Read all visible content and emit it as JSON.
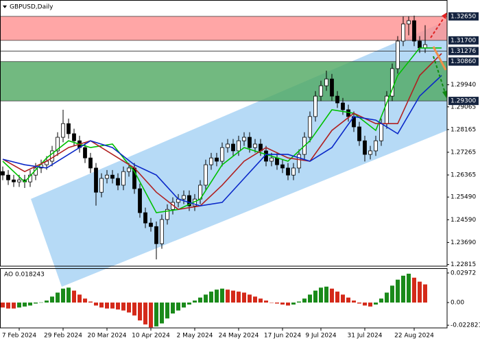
{
  "chart_data": [
    {
      "type": "candlestick",
      "title": "GBPUSD,Daily",
      "xlim": [
        -0.5,
        81
      ],
      "xticks": [
        {
          "value": 3,
          "label": "7 Feb 2024"
        },
        {
          "value": 11,
          "label": "29 Feb 2024"
        },
        {
          "value": 19,
          "label": "20 Mar 2024"
        },
        {
          "value": 27,
          "label": "10 Apr 2024"
        },
        {
          "value": 35,
          "label": "2 May 2024"
        },
        {
          "value": 43,
          "label": "24 May 2024"
        },
        {
          "value": 51,
          "label": "17 Jun 2024"
        },
        {
          "value": 58,
          "label": "9 Jul 2024"
        },
        {
          "value": 66,
          "label": "31 Jul 2024"
        },
        {
          "value": 75,
          "label": "22 Aug 2024"
        }
      ],
      "ylim": [
        1.2275,
        1.333
      ],
      "yticks": [
        {
          "value": 1.2994,
          "label": "1.29940"
        },
        1.29065,
        1.28165,
        1.27265,
        1.26365,
        {
          "value": 1.2549,
          "label": "1.25490"
        },
        {
          "value": 1.2459,
          "label": "1.24590"
        },
        {
          "value": 1.2369,
          "label": "1.23690"
        },
        1.22815
      ],
      "levels": [
        {
          "value": 1.3265,
          "label": "1.32650"
        },
        {
          "value": 1.317,
          "label": "1.31700"
        },
        1.31276,
        {
          "value": 1.3086,
          "label": "1.30860"
        },
        {
          "value": 1.293,
          "label": "1.29300"
        }
      ],
      "zones": [
        {
          "top": 1.3265,
          "bottom": 1.317,
          "color": "#ff9090"
        },
        {
          "top": 1.3086,
          "bottom": 1.293,
          "color": "#4fa860"
        }
      ],
      "up_color": "#ffffff",
      "down_color": "#000000",
      "open": [
        1.265,
        1.2636,
        1.2617,
        1.2609,
        1.2617,
        1.2609,
        1.2636,
        1.2664,
        1.2677,
        1.2691,
        1.2732,
        1.2786,
        1.284,
        1.28,
        1.2772,
        1.2745,
        1.2704,
        1.2664,
        1.2568,
        1.2623,
        1.2636,
        1.2623,
        1.2596,
        1.265,
        1.2664,
        1.2582,
        1.2487,
        1.2446,
        1.2432,
        1.2364,
        1.246,
        1.25,
        1.2528,
        1.2541,
        1.2555,
        1.2514,
        1.2541,
        1.2596,
        1.2677,
        1.2704,
        1.2691,
        1.2745,
        1.2759,
        1.2732,
        1.2772,
        1.2786,
        1.2745,
        1.2759,
        1.2732,
        1.2691,
        1.2704,
        1.2677,
        1.2664,
        1.2636,
        1.2664,
        1.2718,
        1.2786,
        1.2868,
        1.2949,
        1.299,
        1.3017,
        1.2949,
        1.2922,
        1.2895,
        1.2868,
        1.2827,
        1.2772,
        1.2718,
        1.2732,
        1.2772,
        1.284,
        1.2949,
        1.3058,
        1.3167,
        1.3235,
        1.3248,
        1.3167,
        1.314
      ],
      "high": [
        1.267,
        1.2656,
        1.2637,
        1.2637,
        1.2637,
        1.2656,
        1.2684,
        1.2697,
        1.2711,
        1.2752,
        1.2806,
        1.2895,
        1.286,
        1.282,
        1.2792,
        1.2765,
        1.2724,
        1.2684,
        1.2643,
        1.2656,
        1.2656,
        1.2643,
        1.267,
        1.2684,
        1.2684,
        1.2602,
        1.2507,
        1.2466,
        1.2452,
        1.248,
        1.252,
        1.2548,
        1.2561,
        1.2575,
        1.2575,
        1.2561,
        1.2616,
        1.2697,
        1.2724,
        1.2724,
        1.2765,
        1.2779,
        1.2779,
        1.2792,
        1.2806,
        1.2806,
        1.2779,
        1.2779,
        1.2752,
        1.2724,
        1.2724,
        1.2697,
        1.2684,
        1.2684,
        1.2738,
        1.2806,
        1.2888,
        1.2969,
        1.301,
        1.305,
        1.3037,
        1.2969,
        1.2942,
        1.2915,
        1.2888,
        1.2847,
        1.2792,
        1.2752,
        1.2792,
        1.286,
        1.2969,
        1.3078,
        1.3187,
        1.3265,
        1.3265,
        1.3268,
        1.3187,
        1.323
      ],
      "low": [
        1.2616,
        1.2597,
        1.2589,
        1.2589,
        1.2585,
        1.2589,
        1.2616,
        1.2644,
        1.2657,
        1.2671,
        1.2712,
        1.2766,
        1.278,
        1.2752,
        1.2725,
        1.2684,
        1.2644,
        1.2515,
        1.2548,
        1.2603,
        1.2603,
        1.2576,
        1.2576,
        1.263,
        1.2562,
        1.2467,
        1.2426,
        1.2412,
        1.2302,
        1.2344,
        1.244,
        1.248,
        1.2508,
        1.2521,
        1.2494,
        1.2494,
        1.2521,
        1.2576,
        1.2657,
        1.2671,
        1.2671,
        1.2725,
        1.2712,
        1.2712,
        1.2752,
        1.2725,
        1.2725,
        1.2712,
        1.2671,
        1.2671,
        1.2657,
        1.2644,
        1.2616,
        1.2616,
        1.2644,
        1.2698,
        1.2766,
        1.2848,
        1.2929,
        1.297,
        1.2929,
        1.2902,
        1.2875,
        1.2848,
        1.2807,
        1.2752,
        1.269,
        1.2698,
        1.2712,
        1.2752,
        1.282,
        1.2929,
        1.3038,
        1.3147,
        1.319,
        1.3147,
        1.312,
        1.312
      ],
      "close": [
        1.2636,
        1.2617,
        1.2609,
        1.2617,
        1.2609,
        1.2636,
        1.2664,
        1.2677,
        1.2691,
        1.2732,
        1.2786,
        1.284,
        1.28,
        1.2772,
        1.2745,
        1.2704,
        1.2664,
        1.2568,
        1.2623,
        1.2636,
        1.2623,
        1.2596,
        1.265,
        1.2664,
        1.2582,
        1.2487,
        1.2446,
        1.2432,
        1.2364,
        1.246,
        1.25,
        1.2528,
        1.2541,
        1.2555,
        1.2514,
        1.2541,
        1.2596,
        1.2677,
        1.2704,
        1.2691,
        1.2745,
        1.2759,
        1.2732,
        1.2772,
        1.2786,
        1.2745,
        1.2759,
        1.2732,
        1.2691,
        1.2704,
        1.2677,
        1.2664,
        1.2636,
        1.2664,
        1.2718,
        1.2786,
        1.2868,
        1.2949,
        1.299,
        1.3017,
        1.2949,
        1.2922,
        1.2895,
        1.2868,
        1.2827,
        1.2772,
        1.2718,
        1.2732,
        1.2772,
        1.284,
        1.2949,
        1.3058,
        1.3167,
        1.3235,
        1.3248,
        1.3167,
        1.314,
        1.3153
      ],
      "series": [
        {
          "color": "#00c000",
          "x": [
            0,
            4,
            8,
            12,
            16,
            20,
            24,
            28,
            32,
            36,
            40,
            44,
            48,
            52,
            56,
            60,
            64,
            68,
            72,
            76,
            80
          ],
          "values": [
            1.2691,
            1.2609,
            1.2704,
            1.2772,
            1.2745,
            1.2759,
            1.265,
            1.2487,
            1.25,
            1.2541,
            1.2677,
            1.2745,
            1.2718,
            1.2691,
            1.2772,
            1.2895,
            1.2881,
            1.2813,
            1.3031,
            1.314,
            1.314
          ]
        },
        {
          "color": "#b02020",
          "x": [
            0,
            4,
            8,
            12,
            16,
            20,
            24,
            28,
            32,
            36,
            40,
            44,
            48,
            52,
            56,
            60,
            64,
            68,
            72,
            76,
            80
          ],
          "values": [
            1.2699,
            1.265,
            1.2691,
            1.2745,
            1.2772,
            1.2718,
            1.2664,
            1.2568,
            1.25,
            1.2514,
            1.2596,
            1.2691,
            1.2745,
            1.2704,
            1.2691,
            1.2813,
            1.2881,
            1.284,
            1.284,
            1.3031,
            1.3118
          ]
        },
        {
          "color": "#0a28c8",
          "x": [
            0,
            4,
            8,
            12,
            16,
            20,
            24,
            28,
            32,
            36,
            40,
            44,
            48,
            52,
            56,
            60,
            64,
            68,
            72,
            76,
            80
          ],
          "values": [
            1.2699,
            1.2677,
            1.2664,
            1.2718,
            1.2772,
            1.2745,
            1.2677,
            1.2636,
            1.2541,
            1.2514,
            1.2528,
            1.2623,
            1.2718,
            1.2718,
            1.2691,
            1.2745,
            1.2868,
            1.2854,
            1.28,
            1.2949,
            1.3031
          ]
        }
      ]
    },
    {
      "type": "ao",
      "label": "AO 0.018243",
      "xlim": [
        -0.5,
        81
      ],
      "ylim": [
        -0.0255,
        0.0345
      ],
      "yticks": [
        0.02972,
        {
          "value": 0,
          "label": "0.00"
        },
        -0.022821
      ],
      "up_color": "#1a8a1a",
      "down_color": "#d42a1a",
      "values": [
        -0.005,
        -0.006,
        -0.006,
        -0.005,
        -0.004,
        -0.003,
        -0.001,
        0.0002,
        0.002,
        0.006,
        0.01,
        0.014,
        0.015,
        0.012,
        0.008,
        0.004,
        0.001,
        -0.003,
        -0.005,
        -0.006,
        -0.006,
        -0.007,
        -0.008,
        -0.01,
        -0.013,
        -0.018,
        -0.022,
        -0.025,
        -0.024,
        -0.021,
        -0.016,
        -0.011,
        -0.008,
        -0.005,
        -0.002,
        0.002,
        0.005,
        0.008,
        0.011,
        0.013,
        0.014,
        0.013,
        0.012,
        0.011,
        0.01,
        0.008,
        0.006,
        0.004,
        0.002,
        0.0,
        -0.001,
        -0.002,
        -0.003,
        -0.002,
        0.001,
        0.004,
        0.008,
        0.012,
        0.015,
        0.016,
        0.014,
        0.011,
        0.008,
        0.005,
        0.002,
        -0.001,
        -0.003,
        -0.004,
        -0.002,
        0.004,
        0.01,
        0.017,
        0.023,
        0.027,
        0.029,
        0.025,
        0.021,
        0.018243
      ]
    }
  ]
}
